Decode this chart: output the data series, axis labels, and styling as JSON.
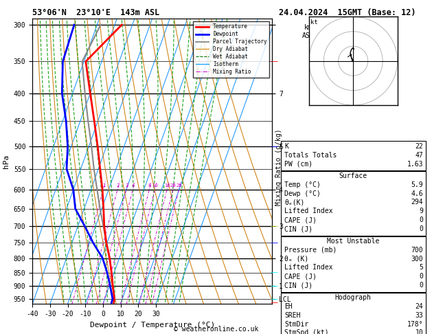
{
  "title_left": "53°06'N  23°10'E  143m ASL",
  "title_right": "24.04.2024  15GMT (Base: 12)",
  "xlabel": "Dewpoint / Temperature (°C)",
  "background_color": "#ffffff",
  "temp_profile_p": [
    965,
    950,
    900,
    850,
    800,
    750,
    700,
    650,
    600,
    550,
    500,
    450,
    400,
    350,
    300
  ],
  "temp_profile_t": [
    5.9,
    5.5,
    2.0,
    -1.5,
    -5.5,
    -10.5,
    -15.0,
    -19.0,
    -23.5,
    -29.0,
    -35.0,
    -42.0,
    -50.0,
    -59.0,
    -46.0
  ],
  "dewp_profile_p": [
    965,
    950,
    900,
    850,
    800,
    750,
    700,
    650,
    600,
    550,
    500,
    450,
    400,
    350,
    300
  ],
  "dewp_profile_t": [
    4.6,
    4.5,
    0.5,
    -4.0,
    -9.5,
    -18.0,
    -26.0,
    -35.0,
    -40.0,
    -48.0,
    -52.0,
    -58.0,
    -66.0,
    -72.0,
    -73.0
  ],
  "parcel_profile_p": [
    965,
    950,
    900,
    850,
    800,
    750,
    700,
    650,
    600,
    550,
    500,
    450,
    400,
    350,
    300
  ],
  "parcel_profile_t": [
    5.9,
    5.5,
    2.0,
    -1.5,
    -5.5,
    -10.5,
    -15.5,
    -21.0,
    -26.5,
    -32.5,
    -38.5,
    -45.5,
    -53.0,
    -61.0,
    -58.0
  ],
  "mixing_ratio_lines": [
    1,
    2,
    3,
    4,
    8,
    10,
    16,
    20,
    25
  ],
  "mixing_ratio_labels": [
    "1",
    "2",
    "3",
    "4",
    "8",
    "10",
    "16",
    "20",
    "25"
  ],
  "stats": {
    "K": 22,
    "Totals_Totals": 47,
    "PW_cm": 1.63,
    "Surface_Temp": 5.9,
    "Surface_Dewp": 4.6,
    "Surface_theta_e": 294,
    "Surface_LI": 9,
    "Surface_CAPE": 0,
    "Surface_CIN": 0,
    "MU_Pressure": 700,
    "MU_theta_e": 300,
    "MU_LI": 5,
    "MU_CAPE": 0,
    "MU_CIN": 0,
    "EH": 24,
    "SREH": 33,
    "StmDir": "178°",
    "StmSpd": 10
  },
  "legend_items": [
    {
      "label": "Temperature",
      "color": "#ff0000",
      "lw": 2.0,
      "ls": "-"
    },
    {
      "label": "Dewpoint",
      "color": "#0000ff",
      "lw": 2.0,
      "ls": "-"
    },
    {
      "label": "Parcel Trajectory",
      "color": "#808080",
      "lw": 1.2,
      "ls": "-"
    },
    {
      "label": "Dry Adiabat",
      "color": "#cc8800",
      "lw": 0.8,
      "ls": "-"
    },
    {
      "label": "Wet Adiabat",
      "color": "#007700",
      "lw": 0.8,
      "ls": "--"
    },
    {
      "label": "Isotherm",
      "color": "#0099ff",
      "lw": 0.8,
      "ls": "-"
    },
    {
      "label": "Mixing Ratio",
      "color": "#cc00cc",
      "lw": 0.7,
      "ls": "-."
    }
  ]
}
